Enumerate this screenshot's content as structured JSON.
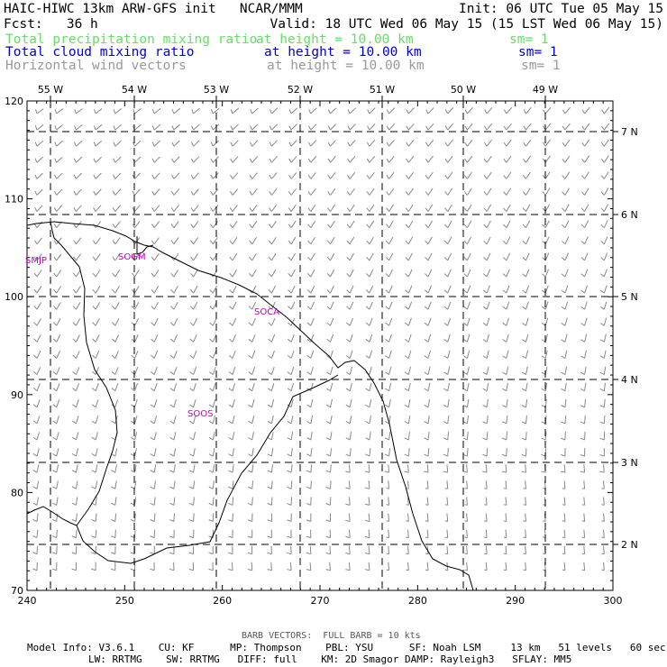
{
  "header": {
    "title": "HAIC-HIWC 13km ARW-GFS init   NCAR/MMM",
    "init": "Init: 06 UTC Tue 05 May 15",
    "fcst": "Fcst:   36 h",
    "valid": "Valid: 18 UTC Wed 06 May 15 (15 LST Wed 06 May 15)",
    "fields": [
      {
        "name": "Total precipitation mixing ratio",
        "level": "at height = 10.00 km",
        "sm": "sm= 1",
        "color": "#66dd66"
      },
      {
        "name": "Total cloud mixing ratio",
        "level": "at height = 10.00 km",
        "sm": "sm= 1",
        "color": "#0000cc"
      },
      {
        "name": "Horizontal wind vectors",
        "level": "at height = 10.00 km",
        "sm": "sm= 1",
        "color": "#999999"
      }
    ]
  },
  "map": {
    "x_ticks": [
      "240",
      "250",
      "260",
      "270",
      "280",
      "290",
      "300"
    ],
    "y_ticks": [
      "70",
      "80",
      "90",
      "100",
      "110",
      "120"
    ],
    "lon_labels": [
      "55 W",
      "54 W",
      "53 W",
      "52 W",
      "51 W",
      "50 W",
      "49 W"
    ],
    "lat_labels": [
      "2 N",
      "3 N",
      "4 N",
      "5 N",
      "6 N",
      "7 N"
    ],
    "stations": [
      {
        "label": "SMJP"
      },
      {
        "label": "SOGM"
      },
      {
        "label": "SOCA"
      },
      {
        "label": "SOOS"
      }
    ],
    "barb_color": "#888888"
  },
  "footer": {
    "barb_note": "BARB VECTORS:  FULL BARB = 10 kts",
    "model_line1": "Model Info: V3.6.1    CU: KF      MP: Thompson    PBL: YSU      SF: Noah LSM     13 km   51 levels   60 sec",
    "model_line2": "LW: RRTMG    SW: RRTMG   DIFF: full    KM: 2D Smagor DAMP: Rayleigh3   SFLAY: MM5"
  }
}
